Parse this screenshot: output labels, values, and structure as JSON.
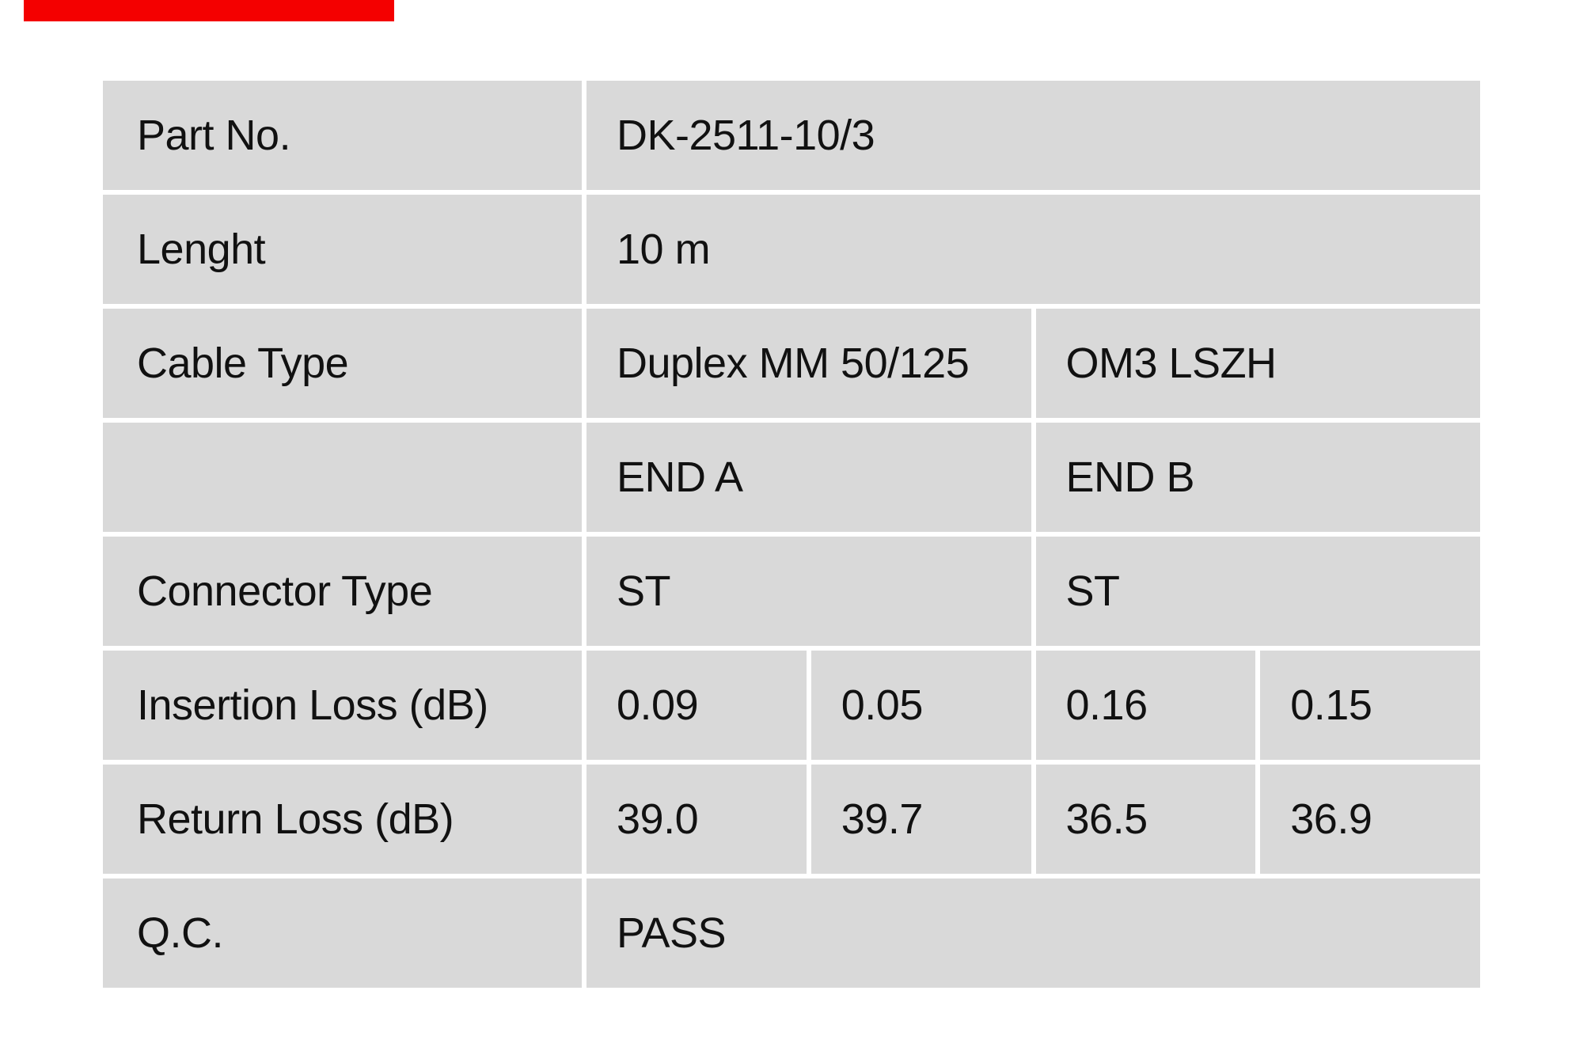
{
  "page": {
    "background": "#ffffff"
  },
  "decorations": {
    "red_strip_color": "#f40000"
  },
  "table": {
    "cell_background": "#d9d9d9",
    "text_color": "#111111",
    "rows": [
      {
        "label": "Part No.",
        "cells": [
          {
            "span": 4,
            "text": "DK-2511-10/3"
          }
        ]
      },
      {
        "label": "Lenght",
        "cells": [
          {
            "span": 4,
            "text": "10 m"
          }
        ]
      },
      {
        "label": "Cable Type",
        "cells": [
          {
            "span": 2,
            "text": "Duplex MM 50/125"
          },
          {
            "span": 2,
            "text": "OM3 LSZH"
          }
        ]
      },
      {
        "label": "",
        "cells": [
          {
            "span": 2,
            "text": "END A"
          },
          {
            "span": 2,
            "text": "END B"
          }
        ]
      },
      {
        "label": "Connector Type",
        "cells": [
          {
            "span": 2,
            "text": "ST"
          },
          {
            "span": 2,
            "text": "ST"
          }
        ]
      },
      {
        "label": "Insertion Loss (dB)",
        "cells": [
          {
            "span": 1,
            "text": "0.09"
          },
          {
            "span": 1,
            "text": "0.05"
          },
          {
            "span": 1,
            "text": "0.16"
          },
          {
            "span": 1,
            "text": "0.15"
          }
        ]
      },
      {
        "label": "Return Loss (dB)",
        "cells": [
          {
            "span": 1,
            "text": "39.0"
          },
          {
            "span": 1,
            "text": "39.7"
          },
          {
            "span": 1,
            "text": "36.5"
          },
          {
            "span": 1,
            "text": "36.9"
          }
        ]
      },
      {
        "label": "Q.C.",
        "cells": [
          {
            "span": 4,
            "text": "PASS"
          }
        ]
      }
    ]
  }
}
